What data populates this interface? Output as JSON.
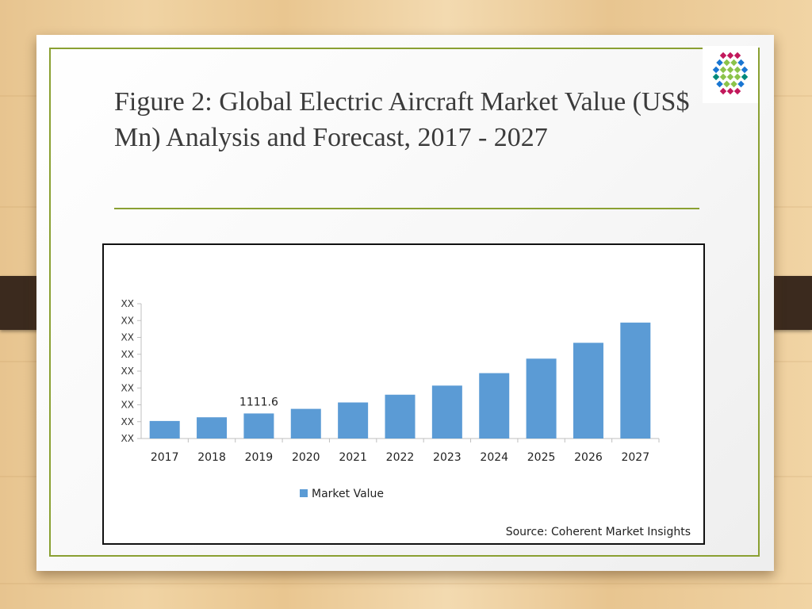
{
  "slide": {
    "title": "Figure 2: Global Electric Aircraft Market Value (US$ Mn) Analysis and Forecast, 2017 - 2027",
    "logo_icon": "dotted-globe-logo-icon"
  },
  "colors": {
    "bar": "#5b9bd5",
    "accent_border": "#8aa032",
    "clip": "#3b2a1e"
  },
  "chart_data": {
    "type": "bar",
    "categories": [
      "2017",
      "2018",
      "2019",
      "2020",
      "2021",
      "2022",
      "2023",
      "2024",
      "2025",
      "2026",
      "2027"
    ],
    "series": [
      {
        "name": "Market Value",
        "values": [
          1000,
          1055,
          1111.6,
          1180,
          1275,
          1390,
          1525,
          1710,
          1925,
          2160,
          2460
        ]
      }
    ],
    "ylim": [
      740,
      2740
    ],
    "y_tick_labels": [
      "XX",
      "XX",
      "XX",
      "XX",
      "XX",
      "XX",
      "XX",
      "XX",
      "XX"
    ],
    "data_labels": [
      {
        "category": "2019",
        "text": "1111.6"
      }
    ],
    "legend": {
      "position": "bottom",
      "entries": [
        "Market Value"
      ]
    },
    "source": "Source: Coherent Market Insights",
    "grid": false
  }
}
